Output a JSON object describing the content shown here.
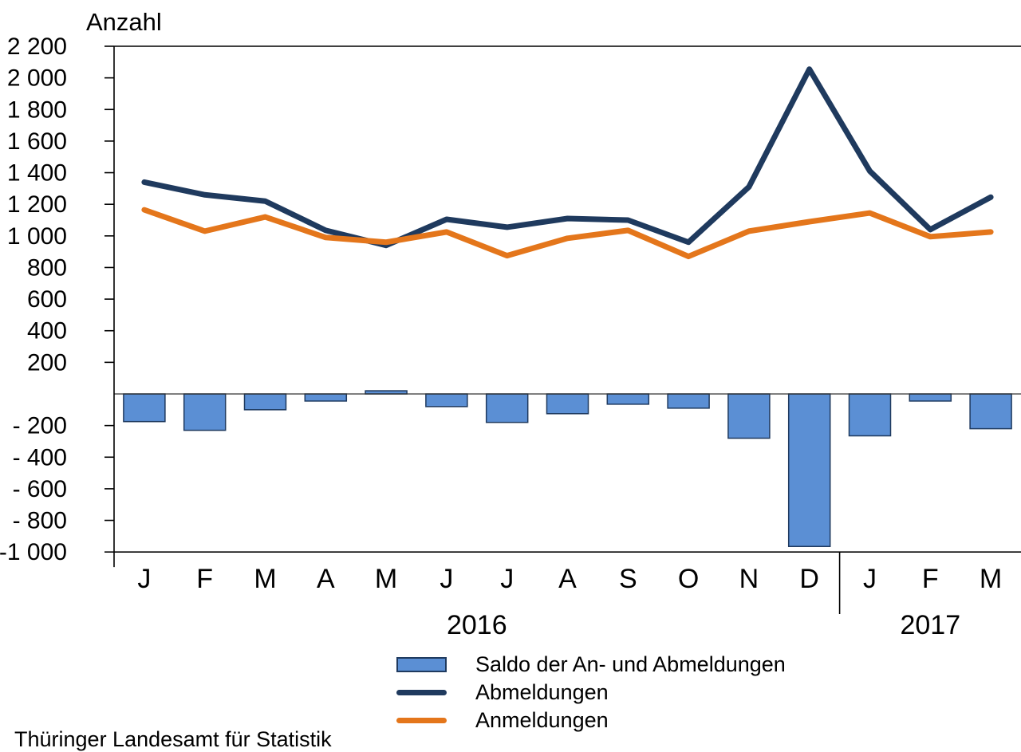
{
  "title": "Anzahl",
  "footer": "Thüringer Landesamt für Statistik",
  "legend": {
    "items": [
      {
        "swatch": "bar",
        "label": "Saldo der An- und Abmeldungen"
      },
      {
        "swatch": "line-dark",
        "label": "Abmeldungen"
      },
      {
        "swatch": "line-orange",
        "label": "Anmeldungen"
      }
    ]
  },
  "colors": {
    "bar_fill": "#5B8FD4",
    "bar_border": "#1F3A5F",
    "abmeldungen_line": "#1F3A5E",
    "anmeldungen_line": "#E4761B",
    "axis": "#000000",
    "zero_line": "#333333"
  },
  "chart_data": {
    "type": "bar+line",
    "title": "Anzahl",
    "ylabel": "Anzahl",
    "ylim": [
      -1000,
      2200
    ],
    "ytick_step": 200,
    "grid": false,
    "legend_position": "bottom",
    "categories": [
      "J",
      "F",
      "M",
      "A",
      "M",
      "J",
      "J",
      "A",
      "S",
      "O",
      "N",
      "D",
      "J",
      "F",
      "M"
    ],
    "year_groups": [
      {
        "label": "2016",
        "months": 12
      },
      {
        "label": "2017",
        "months": 3
      }
    ],
    "yticks": [
      {
        "value": 2200,
        "label": "2 200"
      },
      {
        "value": 2000,
        "label": "2 000"
      },
      {
        "value": 1800,
        "label": "1 800"
      },
      {
        "value": 1600,
        "label": "1 600"
      },
      {
        "value": 1400,
        "label": "1 400"
      },
      {
        "value": 1200,
        "label": "1 200"
      },
      {
        "value": 1000,
        "label": "1 000"
      },
      {
        "value": 800,
        "label": "800"
      },
      {
        "value": 600,
        "label": "600"
      },
      {
        "value": 400,
        "label": "400"
      },
      {
        "value": 200,
        "label": "200"
      },
      {
        "value": -200,
        "label": "- 200"
      },
      {
        "value": -400,
        "label": "- 400"
      },
      {
        "value": -600,
        "label": "- 600"
      },
      {
        "value": -800,
        "label": "- 800"
      },
      {
        "value": -1000,
        "label": "-1 000"
      }
    ],
    "series": [
      {
        "name": "Saldo der An- und Abmeldungen",
        "type": "bar",
        "values": [
          -175,
          -230,
          -100,
          -45,
          20,
          -80,
          -180,
          -125,
          -65,
          -90,
          -280,
          -965,
          -265,
          -45,
          -220
        ]
      },
      {
        "name": "Abmeldungen",
        "type": "line",
        "values": [
          1340,
          1260,
          1220,
          1035,
          940,
          1105,
          1055,
          1110,
          1100,
          960,
          1310,
          2055,
          1410,
          1040,
          1245
        ]
      },
      {
        "name": "Anmeldungen",
        "type": "line",
        "values": [
          1165,
          1030,
          1120,
          990,
          960,
          1025,
          875,
          985,
          1035,
          870,
          1030,
          1090,
          1145,
          995,
          1025
        ]
      }
    ]
  }
}
